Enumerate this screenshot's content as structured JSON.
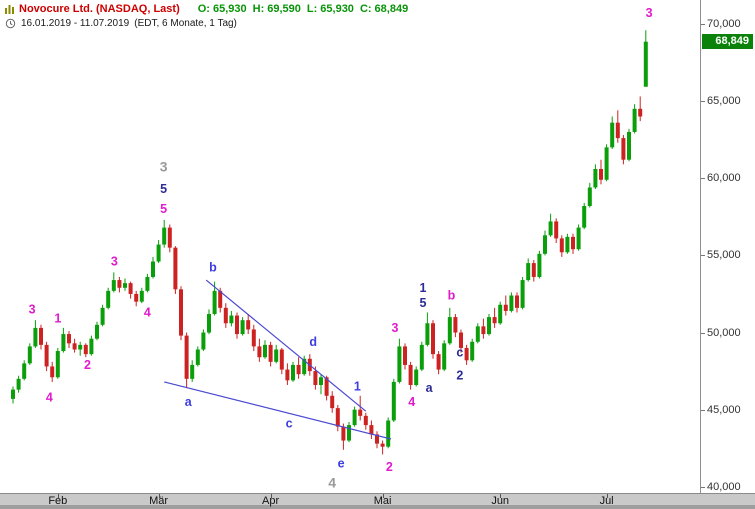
{
  "header": {
    "title": "Novocure Ltd. (NASDAQ, Last)",
    "open_label": "O:",
    "open": "65,930",
    "high_label": "H:",
    "high": "69,590",
    "low_label": "L:",
    "low": "65,930",
    "close_label": "C:",
    "close": "68,849",
    "date_range": "16.01.2019 - 11.07.2019",
    "timeframe": "(EDT, 6 Monate, 1 Tag)"
  },
  "colors": {
    "up": "#0a9e0a",
    "down": "#cc2222",
    "magenta": "#e01ccc",
    "blue": "#3d3de0",
    "navy": "#2c2c96",
    "gray": "#9a9a9a",
    "trendline": "#4a4ad2",
    "badge_bg": "#0b830b",
    "title": "#cc0000",
    "ohlc_text": "#089408"
  },
  "chart_data": {
    "type": "candlestick",
    "title": "Novocure Ltd. (NASDAQ, Last)",
    "interval": "1 Tag",
    "range": "16.01.2019 - 11.07.2019",
    "ylim": [
      39600,
      71550
    ],
    "y_ticks": [
      {
        "value": 70000,
        "label": "70,000"
      },
      {
        "value": 65000,
        "label": "65,000"
      },
      {
        "value": 60000,
        "label": "60,000"
      },
      {
        "value": 55000,
        "label": "55,000"
      },
      {
        "value": 50000,
        "label": "50,000"
      },
      {
        "value": 45000,
        "label": "45,000"
      },
      {
        "value": 40000,
        "label": "40,000"
      }
    ],
    "months": [
      {
        "label": "Feb",
        "index": 8
      },
      {
        "label": "Mär",
        "index": 26
      },
      {
        "label": "Apr",
        "index": 46
      },
      {
        "label": "Mai",
        "index": 66
      },
      {
        "label": "Jun",
        "index": 87
      },
      {
        "label": "Jul",
        "index": 106
      }
    ],
    "last_price": {
      "value": 68849,
      "label": "68,849"
    },
    "candles": [
      [
        45700,
        46500,
        45400,
        46300
      ],
      [
        46300,
        47200,
        46100,
        47000
      ],
      [
        47000,
        48200,
        46900,
        48000
      ],
      [
        48000,
        49300,
        47900,
        49100
      ],
      [
        49100,
        50800,
        49000,
        50300
      ],
      [
        50300,
        50500,
        48900,
        49200
      ],
      [
        49200,
        49400,
        47500,
        47800
      ],
      [
        47800,
        48100,
        46800,
        47100
      ],
      [
        47100,
        49000,
        47000,
        48800
      ],
      [
        48800,
        50300,
        48700,
        49900
      ],
      [
        49900,
        50100,
        49000,
        49300
      ],
      [
        49300,
        49600,
        48700,
        48900
      ],
      [
        48900,
        49400,
        48500,
        49200
      ],
      [
        49200,
        49300,
        48400,
        48600
      ],
      [
        48600,
        49800,
        48500,
        49600
      ],
      [
        49600,
        50700,
        49500,
        50500
      ],
      [
        50500,
        51800,
        50400,
        51600
      ],
      [
        51600,
        52900,
        51500,
        52700
      ],
      [
        52700,
        53900,
        52600,
        53400
      ],
      [
        53400,
        53600,
        52600,
        52900
      ],
      [
        52900,
        53500,
        52700,
        53200
      ],
      [
        53200,
        53300,
        52200,
        52500
      ],
      [
        52500,
        52700,
        51700,
        52000
      ],
      [
        52000,
        52900,
        51900,
        52700
      ],
      [
        52700,
        53800,
        52600,
        53600
      ],
      [
        53600,
        54900,
        53500,
        54600
      ],
      [
        54600,
        56000,
        54500,
        55700
      ],
      [
        55700,
        57300,
        55500,
        56800
      ],
      [
        56800,
        57000,
        55200,
        55500
      ],
      [
        55500,
        55600,
        52500,
        52800
      ],
      [
        52800,
        53000,
        49500,
        49800
      ],
      [
        49800,
        50000,
        46400,
        47000
      ],
      [
        47000,
        48200,
        46800,
        47900
      ],
      [
        47900,
        49100,
        47800,
        48900
      ],
      [
        48900,
        50200,
        48800,
        50000
      ],
      [
        50000,
        51500,
        49900,
        51200
      ],
      [
        51200,
        53300,
        51100,
        52700
      ],
      [
        52700,
        52900,
        51300,
        51600
      ],
      [
        51600,
        51900,
        50300,
        50600
      ],
      [
        50600,
        51400,
        50400,
        51100
      ],
      [
        51100,
        51300,
        49600,
        49900
      ],
      [
        49900,
        51000,
        49800,
        50800
      ],
      [
        50800,
        51200,
        49900,
        50200
      ],
      [
        50200,
        50500,
        48800,
        49100
      ],
      [
        49100,
        49600,
        48100,
        48400
      ],
      [
        48400,
        49500,
        48300,
        49200
      ],
      [
        49200,
        49400,
        47800,
        48100
      ],
      [
        48100,
        49200,
        48000,
        48900
      ],
      [
        48900,
        49000,
        47300,
        47600
      ],
      [
        47600,
        48000,
        46600,
        46900
      ],
      [
        46900,
        48100,
        46800,
        47900
      ],
      [
        47900,
        48400,
        47000,
        47300
      ],
      [
        47300,
        48500,
        47200,
        48300
      ],
      [
        48300,
        48600,
        47200,
        47500
      ],
      [
        47500,
        47800,
        46300,
        46600
      ],
      [
        46600,
        47300,
        46000,
        47100
      ],
      [
        47100,
        47200,
        45600,
        45900
      ],
      [
        45900,
        46200,
        44800,
        45100
      ],
      [
        45100,
        45300,
        43600,
        43900
      ],
      [
        43900,
        44100,
        42400,
        43000
      ],
      [
        43000,
        44200,
        42900,
        44000
      ],
      [
        44000,
        45200,
        43900,
        45000
      ],
      [
        45000,
        45900,
        44300,
        44600
      ],
      [
        44600,
        44800,
        43700,
        44000
      ],
      [
        44000,
        44300,
        43100,
        43400
      ],
      [
        43400,
        43600,
        42500,
        42800
      ],
      [
        42800,
        43000,
        42100,
        42600
      ],
      [
        42600,
        44500,
        42500,
        44300
      ],
      [
        44300,
        47000,
        44200,
        46800
      ],
      [
        46800,
        49600,
        46700,
        49100
      ],
      [
        49100,
        49300,
        47600,
        47900
      ],
      [
        47900,
        48100,
        46300,
        46600
      ],
      [
        46600,
        47800,
        46500,
        47600
      ],
      [
        47600,
        49400,
        47500,
        49200
      ],
      [
        49200,
        51300,
        49100,
        50600
      ],
      [
        50600,
        50800,
        48300,
        48600
      ],
      [
        48600,
        48800,
        47300,
        47600
      ],
      [
        47600,
        49500,
        47500,
        49300
      ],
      [
        49300,
        51600,
        49200,
        51000
      ],
      [
        51000,
        51200,
        49700,
        50000
      ],
      [
        50000,
        50200,
        48700,
        49000
      ],
      [
        49000,
        49200,
        47900,
        48200
      ],
      [
        48200,
        49600,
        48100,
        49400
      ],
      [
        49400,
        50600,
        49300,
        50400
      ],
      [
        50400,
        50900,
        49600,
        49900
      ],
      [
        49900,
        51200,
        49800,
        51000
      ],
      [
        51000,
        51600,
        50300,
        50600
      ],
      [
        50600,
        52000,
        50500,
        51800
      ],
      [
        51800,
        52400,
        51100,
        51400
      ],
      [
        51400,
        52600,
        51300,
        52400
      ],
      [
        52400,
        52600,
        51300,
        51600
      ],
      [
        51600,
        53600,
        51500,
        53400
      ],
      [
        53400,
        54800,
        53300,
        54500
      ],
      [
        54500,
        54700,
        53300,
        53600
      ],
      [
        53600,
        55300,
        53500,
        55100
      ],
      [
        55100,
        56600,
        55000,
        56300
      ],
      [
        56300,
        57700,
        56200,
        57200
      ],
      [
        57200,
        57400,
        55800,
        56100
      ],
      [
        56100,
        56300,
        54900,
        55200
      ],
      [
        55200,
        56400,
        55100,
        56200
      ],
      [
        56200,
        56400,
        55100,
        55400
      ],
      [
        55400,
        57000,
        55300,
        56800
      ],
      [
        56800,
        58400,
        56700,
        58200
      ],
      [
        58200,
        59700,
        58100,
        59400
      ],
      [
        59400,
        60900,
        59300,
        60600
      ],
      [
        60600,
        61200,
        59600,
        59900
      ],
      [
        59900,
        62200,
        59800,
        62000
      ],
      [
        62000,
        64000,
        61900,
        63600
      ],
      [
        63600,
        64400,
        62300,
        62600
      ],
      [
        62600,
        62800,
        60900,
        61200
      ],
      [
        61200,
        63200,
        61100,
        63000
      ],
      [
        63000,
        64800,
        62900,
        64500
      ],
      [
        64500,
        65300,
        63700,
        64000
      ],
      [
        65930,
        69590,
        65930,
        68849
      ]
    ],
    "trendlines": [
      [
        34.5,
        53400,
        63.0,
        44900
      ],
      [
        27.0,
        46800,
        67.5,
        43100
      ]
    ],
    "wave_labels": [
      [
        "3",
        "magenta",
        3.4,
        51500
      ],
      [
        "4",
        "magenta",
        6.5,
        45800
      ],
      [
        "1",
        "magenta",
        8.0,
        50900
      ],
      [
        "2",
        "magenta",
        13.3,
        47900
      ],
      [
        "3",
        "magenta",
        18.1,
        54600
      ],
      [
        "4",
        "magenta",
        24.0,
        51300
      ],
      [
        "5",
        "magenta",
        26.9,
        58000
      ],
      [
        "5",
        "navy",
        26.9,
        59300
      ],
      [
        "3",
        "gray",
        26.9,
        60700
      ],
      [
        "a",
        "blue",
        31.3,
        45500
      ],
      [
        "b",
        "blue",
        35.7,
        54200
      ],
      [
        "c",
        "blue",
        49.3,
        44100
      ],
      [
        "d",
        "blue",
        53.6,
        49400
      ],
      [
        "e",
        "blue",
        58.6,
        41500
      ],
      [
        "4",
        "gray",
        57.0,
        40200
      ],
      [
        "1",
        "blue",
        61.5,
        46500
      ],
      [
        "2",
        "magenta",
        67.2,
        41300
      ],
      [
        "3",
        "magenta",
        68.2,
        50300
      ],
      [
        "4",
        "magenta",
        71.2,
        45500
      ],
      [
        "1",
        "navy",
        73.2,
        52900
      ],
      [
        "5",
        "navy",
        73.2,
        51900
      ],
      [
        "a",
        "navy",
        74.3,
        46400
      ],
      [
        "b",
        "magenta",
        78.3,
        52400
      ],
      [
        "c",
        "navy",
        79.8,
        48700
      ],
      [
        "2",
        "navy",
        79.8,
        47200
      ],
      [
        "3",
        "magenta",
        113.6,
        70700
      ]
    ]
  }
}
